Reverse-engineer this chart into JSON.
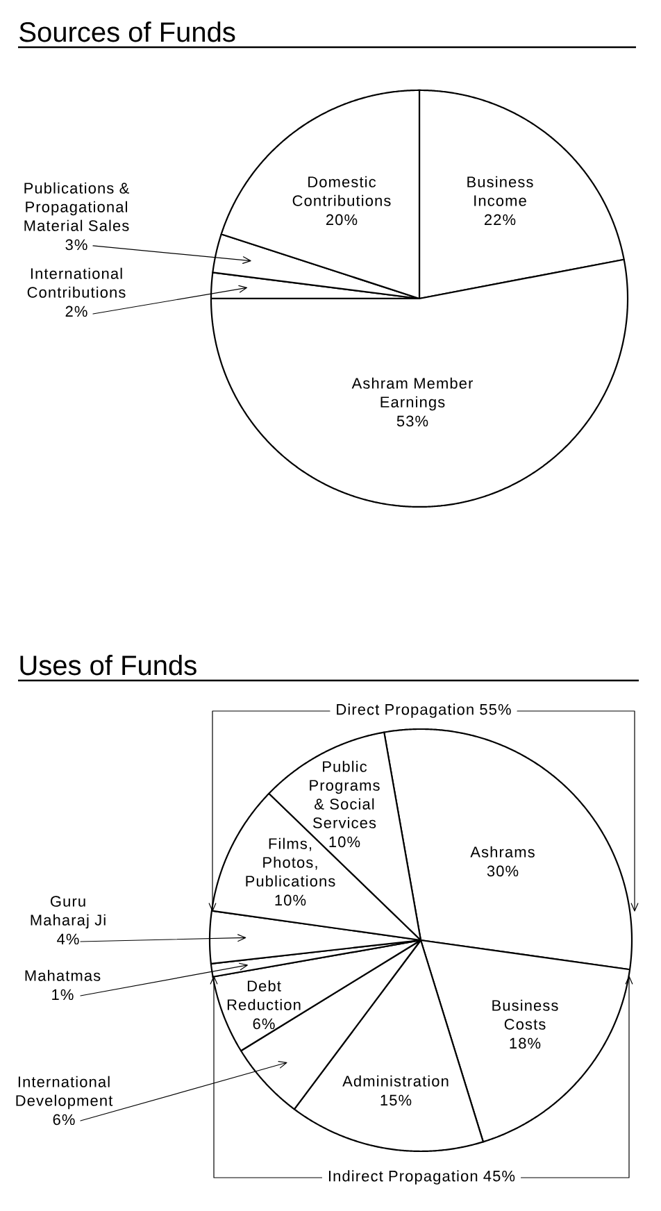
{
  "chart_data": [
    {
      "type": "pie",
      "title": "Sources of Funds",
      "categories": [
        "Business Income",
        "Ashram Member Earnings",
        "International Contributions",
        "Publications & Propagational Material Sales",
        "Domestic Contributions"
      ],
      "values": [
        22,
        53,
        2,
        3,
        20
      ],
      "value_labels": [
        "22%",
        "53%",
        "2%",
        "3%",
        "20%"
      ],
      "colors": [
        "#ffffff",
        "#ffffff",
        "#ffffff",
        "#ffffff",
        "#ffffff"
      ]
    },
    {
      "type": "pie",
      "title": "Uses of Funds",
      "categories": [
        "Ashrams",
        "Business Costs",
        "Administration",
        "International Development",
        "Debt Reduction",
        "Mahatmas",
        "Guru Maharaj Ji",
        "Films, Photos, Publications",
        "Public Programs & Social Services"
      ],
      "values": [
        30,
        18,
        15,
        6,
        6,
        1,
        4,
        10,
        10
      ],
      "value_labels": [
        "30%",
        "18%",
        "15%",
        "6%",
        "6%",
        "1%",
        "4%",
        "10%",
        "10%"
      ],
      "colors": [
        "#ffffff",
        "#ffffff",
        "#ffffff",
        "#ffffff",
        "#ffffff",
        "#ffffff",
        "#ffffff",
        "#ffffff",
        "#ffffff"
      ],
      "annotations": [
        "Direct Propagation 55%",
        "Indirect Propagation 45%"
      ]
    }
  ]
}
